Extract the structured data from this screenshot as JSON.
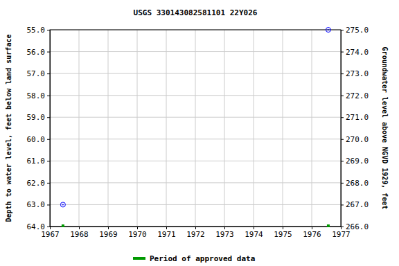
{
  "chart_data": {
    "type": "scatter",
    "title": "USGS 330143082581101 22Y026",
    "ylabel": "Depth to water level, feet below land surface",
    "y2label": "Groundwater level above NGVD 1929, feet",
    "x": [
      1967.45,
      1976.57
    ],
    "series": [
      {
        "color": "#0000ff",
        "marker": "circle",
        "values": [
          63.0,
          55.0
        ]
      },
      {
        "name": "Period of approved data",
        "color": "#009900",
        "marker": "square",
        "values": [
          64.0,
          64.0
        ]
      }
    ],
    "xlim": [
      1967,
      1977
    ],
    "xticks": [
      1967,
      1968,
      1969,
      1970,
      1971,
      1972,
      1973,
      1974,
      1975,
      1976,
      1977
    ],
    "ylim": [
      64,
      55
    ],
    "yticks": [
      {
        "value": 55,
        "label": "55.0"
      },
      {
        "value": 56,
        "label": "56.0"
      },
      {
        "value": 57,
        "label": "57.0"
      },
      {
        "value": 58,
        "label": "58.0"
      },
      {
        "value": 59,
        "label": "59.0"
      },
      {
        "value": 60,
        "label": "60.0"
      },
      {
        "value": 61,
        "label": "61.0"
      },
      {
        "value": 62,
        "label": "62.0"
      },
      {
        "value": 63,
        "label": "63.0"
      },
      {
        "value": 64,
        "label": "64.0"
      }
    ],
    "y2lim": [
      266,
      275
    ],
    "y2ticks": [
      {
        "value": 266,
        "label": "266.0"
      },
      {
        "value": 267,
        "label": "267.0"
      },
      {
        "value": 268,
        "label": "268.0"
      },
      {
        "value": 269,
        "label": "269.0"
      },
      {
        "value": 270,
        "label": "270.0"
      },
      {
        "value": 271,
        "label": "271.0"
      },
      {
        "value": 272,
        "label": "272.0"
      },
      {
        "value": 273,
        "label": "273.0"
      },
      {
        "value": 274,
        "label": "274.0"
      },
      {
        "value": 275,
        "label": "275.0"
      }
    ],
    "grid": true,
    "legend": "bottom"
  }
}
